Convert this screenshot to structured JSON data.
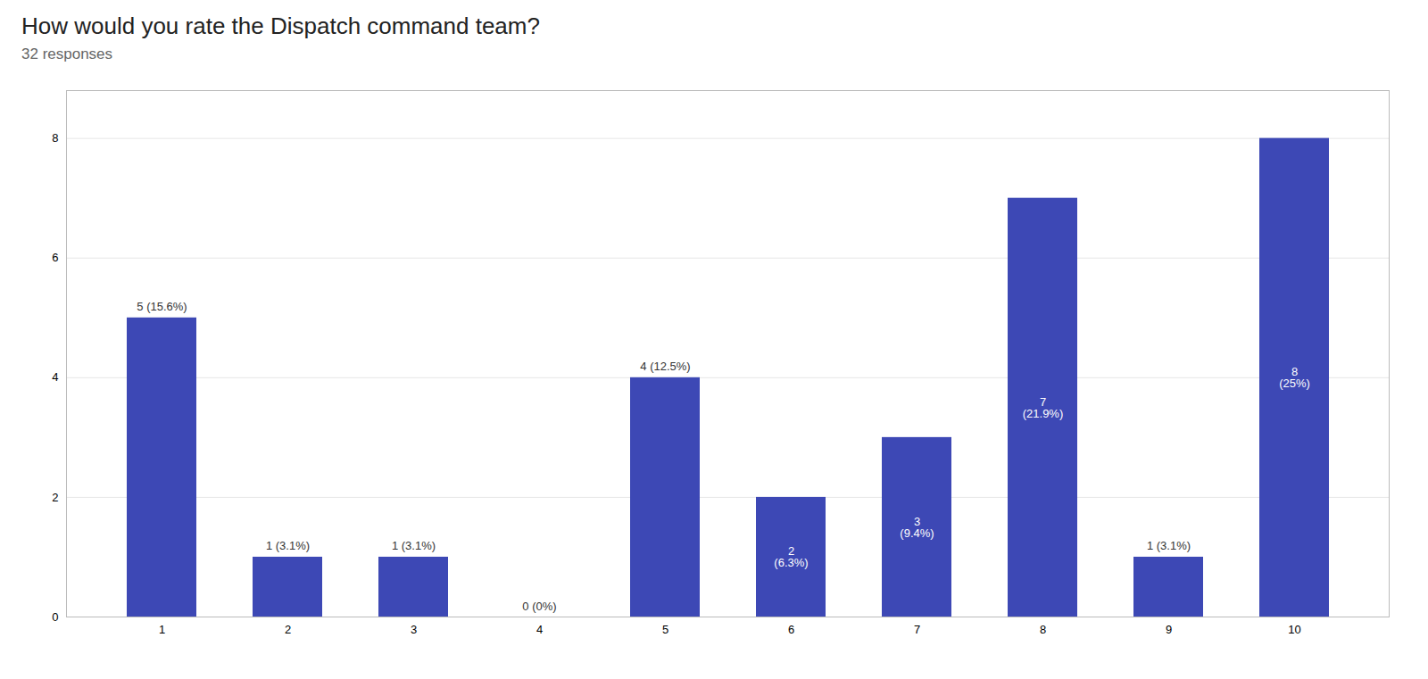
{
  "chart_data": {
    "type": "bar",
    "title": "How would you rate the Dispatch command team?",
    "subtitle": "32 responses",
    "categories": [
      1,
      2,
      3,
      4,
      5,
      6,
      7,
      8,
      9,
      10
    ],
    "values": [
      5,
      1,
      1,
      0,
      4,
      2,
      3,
      7,
      1,
      8
    ],
    "value_labels": [
      "5 (15.6%)",
      "1 (3.1%)",
      "1 (3.1%)",
      "0 (0%)",
      "4 (12.5%)",
      "2\n(6.3%)",
      "3\n(9.4%)",
      "7\n(21.9%)",
      "1 (3.1%)",
      "8\n(25%)"
    ],
    "data_labels": true,
    "color": "#3d48b5",
    "ylim": [
      0,
      8.8
    ],
    "yticks": [
      0,
      2,
      4,
      6,
      8
    ],
    "grid": true
  }
}
